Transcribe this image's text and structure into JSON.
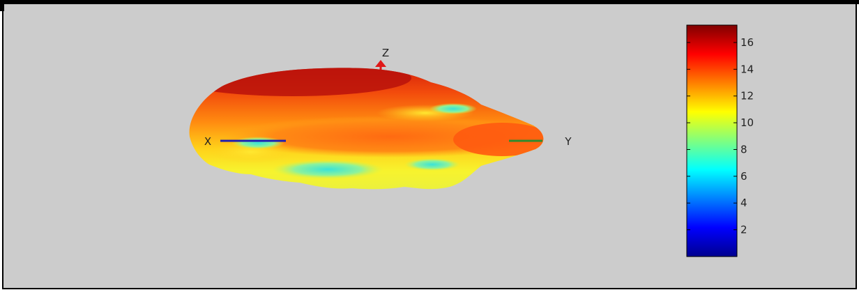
{
  "chart_data": {
    "type": "surface-3d",
    "title": "",
    "axes": {
      "x_label": "X",
      "y_label": "Y",
      "z_label": "Z"
    },
    "colorbar": {
      "colormap": "jet",
      "range": [
        0,
        17.3
      ],
      "ticks": [
        2,
        4,
        6,
        8,
        10,
        12,
        14,
        16
      ],
      "tick_labels": [
        "2",
        "4",
        "6",
        "8",
        "10",
        "12",
        "14",
        "16"
      ]
    },
    "colors": {
      "figure_background": "#cccccc",
      "x_axis": "#1f1fb0",
      "y_axis": "#2e8b2e",
      "z_axis": "#e01818"
    }
  }
}
